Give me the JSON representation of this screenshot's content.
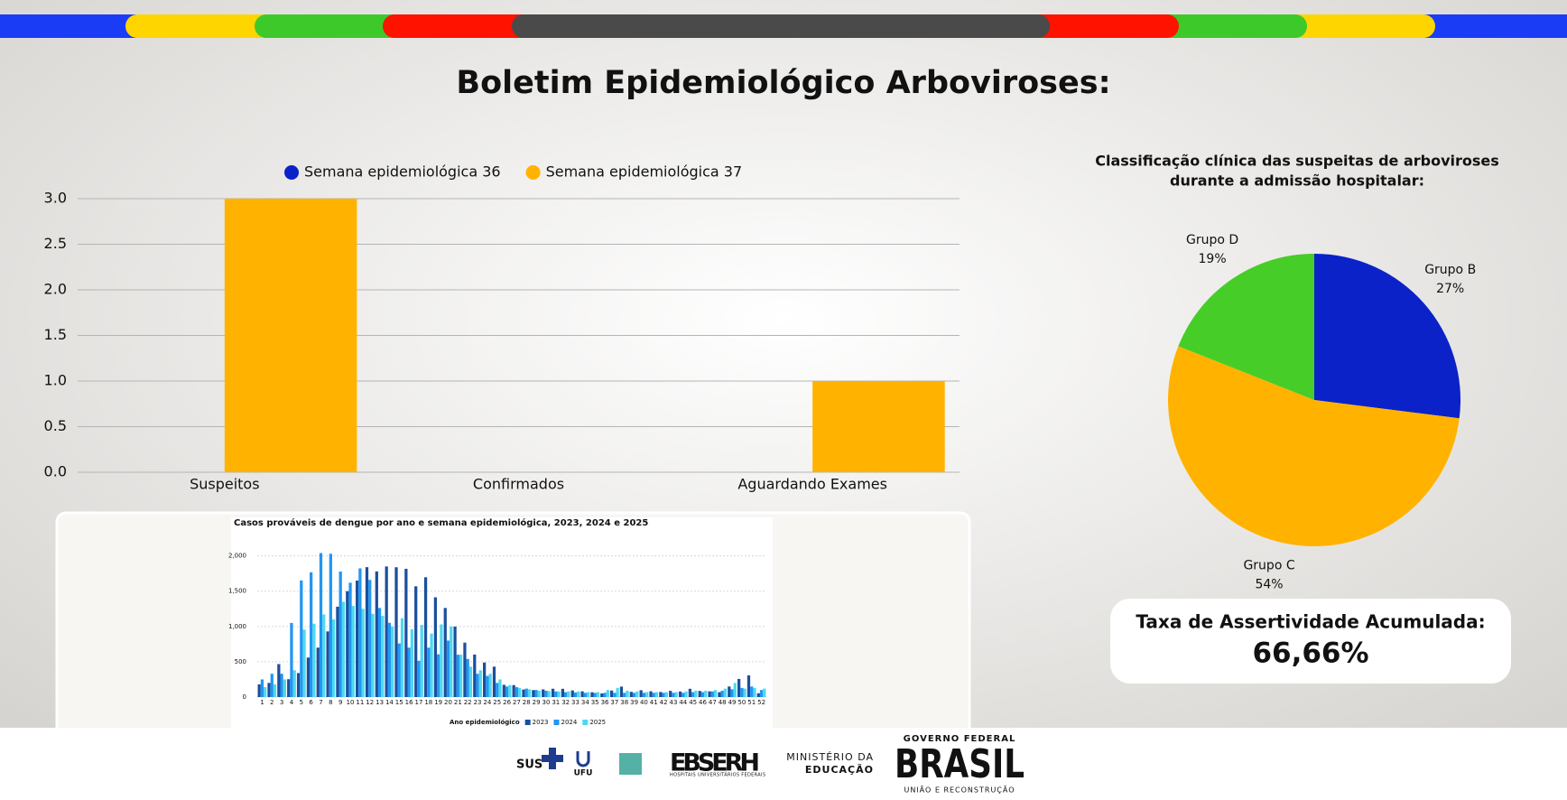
{
  "header": {
    "title": "Boletim Epidemiológico Arboviroses:"
  },
  "chart_data": [
    {
      "type": "bar",
      "categories": [
        "Suspeitos",
        "Confirmados",
        "Aguardando Exames"
      ],
      "series": [
        {
          "name": "Semana epidemiológica 36",
          "color": "#0a22c8",
          "values": [
            0,
            0,
            0
          ]
        },
        {
          "name": "Semana epidemiológica 37",
          "color": "#ffb300",
          "values": [
            3,
            0,
            1
          ]
        }
      ],
      "ylim": [
        0,
        3
      ],
      "yticks": [
        {
          "value": 0,
          "label": "0.0"
        },
        {
          "value": 0.5,
          "label": "0.5"
        },
        {
          "value": 1,
          "label": "1.0"
        },
        {
          "value": 1.5,
          "label": "1.5"
        },
        {
          "value": 2,
          "label": "2.0"
        },
        {
          "value": 2.5,
          "label": "2.5"
        },
        {
          "value": 3,
          "label": "3.0"
        }
      ],
      "grid": true,
      "legend": "top"
    },
    {
      "type": "pie",
      "title": [
        "Classificação clínica das suspeitas de arboviroses",
        "durante a admissão hospitalar:"
      ],
      "categories": [
        "Grupo B",
        "Grupo C",
        "Grupo D"
      ],
      "values": [
        27,
        54,
        19
      ],
      "value_labels": [
        "27%",
        "54%",
        "19%"
      ],
      "colors": [
        "#0a22c8",
        "#ffb300",
        "#46cd28"
      ]
    },
    {
      "type": "bar",
      "title": "Casos prováveis de dengue por ano e semana epidemiológica, 2023, 2024 e 2025",
      "legend_title": "Ano epidemiológico",
      "categories": [
        "1",
        "2",
        "3",
        "4",
        "5",
        "6",
        "7",
        "8",
        "9",
        "10",
        "11",
        "12",
        "13",
        "14",
        "15",
        "16",
        "17",
        "18",
        "19",
        "20",
        "21",
        "22",
        "23",
        "24",
        "25",
        "26",
        "27",
        "28",
        "29",
        "30",
        "31",
        "32",
        "33",
        "34",
        "35",
        "36",
        "37",
        "38",
        "39",
        "40",
        "41",
        "42",
        "43",
        "44",
        "45",
        "46",
        "47",
        "48",
        "49",
        "50",
        "51",
        "52"
      ],
      "series": [
        {
          "name": "2023",
          "color": "#1c4f9c",
          "values": [
            180,
            200,
            467,
            253,
            340,
            560,
            700,
            930,
            1280,
            1500,
            1650,
            1840,
            1780,
            1850,
            1839,
            1817,
            1569,
            1697,
            1413,
            1262,
            999,
            771,
            602,
            489,
            431,
            174,
            169,
            107,
            99,
            109,
            118,
            117,
            94,
            81,
            68,
            52,
            93,
            148,
            74,
            97,
            82,
            72,
            88,
            79,
            117,
            87,
            81,
            69,
            150,
            257,
            307,
            54
          ]
        },
        {
          "name": "2024",
          "color": "#2196f3",
          "values": [
            250,
            330,
            330,
            1050,
            1652,
            1768,
            2040,
            2030,
            1778,
            1620,
            1823,
            1660,
            1262,
            1052,
            760,
            700,
            514,
            700,
            606,
            800,
            600,
            540,
            330,
            300,
            200,
            150,
            140,
            120,
            100,
            90,
            80,
            70,
            65,
            60,
            60,
            60,
            60,
            60,
            60,
            60,
            60,
            60,
            60,
            60,
            70,
            70,
            80,
            90,
            110,
            130,
            150,
            100
          ]
        },
        {
          "name": "2025",
          "color": "#4dd9f0",
          "values": [
            140,
            180,
            250,
            380,
            956,
            1039,
            1170,
            1100,
            1350,
            1290,
            1250,
            1180,
            1150,
            1000,
            1118,
            960,
            1023,
            900,
            1030,
            999,
            600,
            430,
            380,
            330,
            250,
            170,
            130,
            110,
            90,
            85,
            80,
            80,
            80,
            70,
            70,
            100,
            130,
            90,
            80,
            70,
            70,
            70,
            70,
            80,
            90,
            90,
            100,
            120,
            200,
            120,
            130,
            120
          ]
        }
      ],
      "ylim": [
        0,
        2200
      ],
      "yticks": [
        0,
        500,
        {
          "value": 1000,
          "label": "1,000"
        },
        {
          "value": 1500,
          "label": "1,500"
        },
        {
          "value": 2000,
          "label": "2,000"
        }
      ],
      "grid": true,
      "legend": "bottom"
    }
  ],
  "card": {
    "label": "Taxa de Assertividade Acumulada:",
    "value": "66,66%"
  },
  "footer": {
    "sus": "SUS",
    "ufu": "UFU",
    "ebserh": "EBSERH",
    "ebserh_subtitle": "HOSPITAIS UNIVERSITÁRIOS FEDERAIS",
    "ministry": [
      "MINISTÉRIO DA",
      "EDUCAÇÃO"
    ],
    "government": "GOVERNO FEDERAL",
    "brasil": "BRASIL",
    "motto": "UNIÃO E RECONSTRUÇÃO"
  }
}
